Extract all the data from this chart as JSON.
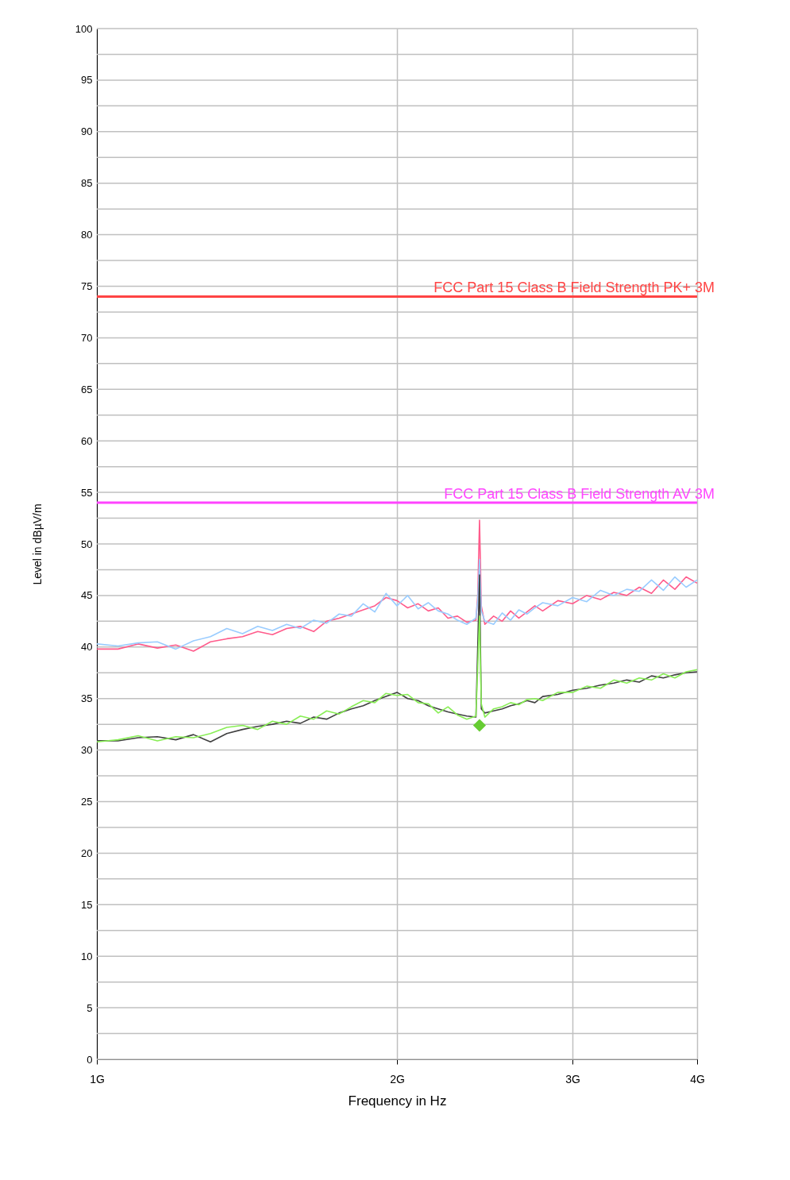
{
  "chart_data": {
    "type": "line",
    "xlabel": "Frequency in Hz",
    "ylabel": "Level in dBµV/m",
    "log": "x",
    "xlim": [
      1,
      4
    ],
    "xticks": [
      {
        "value": 1,
        "label": "1G"
      },
      {
        "value": 2,
        "label": "2G"
      },
      {
        "value": 3,
        "label": "3G"
      },
      {
        "value": 4,
        "label": "4G"
      }
    ],
    "ylim": [
      0,
      100
    ],
    "yticks": [
      0,
      {
        "value": 2.5,
        "label": null
      },
      5,
      {
        "value": 7.5,
        "label": null
      },
      10,
      {
        "value": 12.5,
        "label": null
      },
      15,
      {
        "value": 17.5,
        "label": null
      },
      20,
      {
        "value": 22.5,
        "label": null
      },
      25,
      {
        "value": 27.5,
        "label": null
      },
      30,
      {
        "value": 32.5,
        "label": null
      },
      35,
      {
        "value": 37.5,
        "label": null
      },
      40,
      {
        "value": 42.5,
        "label": null
      },
      45,
      {
        "value": 47.5,
        "label": null
      },
      50,
      {
        "value": 52.5,
        "label": null
      },
      55,
      {
        "value": 57.5,
        "label": null
      },
      60,
      {
        "value": 62.5,
        "label": null
      },
      65,
      {
        "value": 67.5,
        "label": null
      },
      70,
      {
        "value": 72.5,
        "label": null
      },
      75,
      {
        "value": 77.5,
        "label": null
      },
      80,
      {
        "value": 82.5,
        "label": null
      },
      85,
      {
        "value": 87.5,
        "label": null
      },
      90,
      {
        "value": 92.5,
        "label": null
      },
      95,
      {
        "value": 97.5,
        "label": null
      },
      100
    ],
    "grid": true,
    "marker": "none",
    "line_style": "solid",
    "x": [
      1.0,
      1.05,
      1.1,
      1.15,
      1.2,
      1.25,
      1.3,
      1.35,
      1.4,
      1.45,
      1.5,
      1.55,
      1.6,
      1.65,
      1.7,
      1.75,
      1.8,
      1.85,
      1.9,
      1.95,
      2.0,
      2.05,
      2.1,
      2.15,
      2.2,
      2.25,
      2.3,
      2.35,
      2.4,
      2.41,
      2.42,
      2.43,
      2.45,
      2.5,
      2.55,
      2.6,
      2.65,
      2.7,
      2.75,
      2.8,
      2.9,
      3.0,
      3.1,
      3.2,
      3.3,
      3.4,
      3.5,
      3.6,
      3.7,
      3.8,
      3.9,
      4.0
    ],
    "series": [
      {
        "color": "#ff5b8b",
        "values": [
          39.8,
          39.8,
          40.3,
          39.9,
          40.2,
          39.6,
          40.5,
          40.8,
          41,
          41.5,
          41.2,
          41.8,
          42,
          41.5,
          42.5,
          42.8,
          43.2,
          43.6,
          44,
          44.8,
          44.5,
          43.8,
          44.2,
          43.5,
          43.8,
          42.8,
          43,
          42.4,
          42.6,
          45,
          52.3,
          44,
          42.2,
          43,
          42.5,
          43.5,
          42.8,
          43.4,
          44,
          43.5,
          44.5,
          44.2,
          45,
          44.6,
          45.3,
          45,
          45.8,
          45.2,
          46.5,
          45.6,
          46.8,
          46.2
        ]
      },
      {
        "color": "#99ccff",
        "values": [
          40.3,
          40.1,
          40.4,
          40.5,
          39.8,
          40.6,
          41,
          41.8,
          41.3,
          42,
          41.6,
          42.2,
          41.8,
          42.6,
          42.3,
          43.2,
          43,
          44.2,
          43.4,
          45.2,
          44,
          45,
          43.7,
          44.3,
          43.5,
          43.2,
          42.6,
          42.2,
          42.8,
          44.5,
          48.5,
          43.5,
          42.5,
          42.2,
          43.3,
          42.6,
          43.6,
          43.2,
          43.8,
          44.3,
          44,
          44.8,
          44.4,
          45.5,
          45,
          45.6,
          45.4,
          46.5,
          45.5,
          46.8,
          45.8,
          46.5
        ]
      },
      {
        "color": "#404040",
        "values": [
          30.9,
          30.9,
          31.2,
          31.3,
          31,
          31.5,
          30.8,
          31.6,
          32,
          32.3,
          32.5,
          32.8,
          32.6,
          33.2,
          33,
          33.6,
          34,
          34.3,
          34.8,
          35.2,
          35.6,
          35,
          34.8,
          34.3,
          34,
          33.7,
          33.5,
          33.3,
          33.2,
          40,
          47,
          34,
          33.6,
          33.8,
          34,
          34.3,
          34.5,
          34.8,
          34.6,
          35.2,
          35.4,
          35.8,
          36,
          36.3,
          36.5,
          36.8,
          36.6,
          37.2,
          37,
          37.3,
          37.5,
          37.6
        ]
      },
      {
        "color": "#88ee55",
        "values": [
          30.8,
          31,
          31.4,
          30.9,
          31.3,
          31.2,
          31.6,
          32.2,
          32.4,
          32,
          32.8,
          32.5,
          33.3,
          33,
          33.8,
          33.5,
          34.2,
          34.8,
          34.6,
          35.5,
          35.3,
          35.4,
          34.6,
          34.5,
          33.6,
          34.2,
          33.4,
          33,
          33.3,
          38,
          43,
          34.5,
          33.2,
          34,
          34.2,
          34.6,
          34.4,
          34.9,
          35,
          34.8,
          35.6,
          35.6,
          36.2,
          36,
          36.8,
          36.5,
          37,
          36.8,
          37.4,
          37,
          37.6,
          37.8
        ]
      },
      {
        "type": "scatter",
        "marker": "diamond",
        "color": "#66cc33",
        "x": [
          2.42
        ],
        "values": [
          32.4
        ]
      }
    ],
    "ref_lines": [
      {
        "axis": "y",
        "value": 74,
        "label": "FCC Part 15 Class B Field Strength PK+ 3M",
        "color": "#ff4444"
      },
      {
        "axis": "y",
        "value": 54,
        "label": "FCC Part 15 Class B Field Strength AV 3M",
        "color": "#ff44ff"
      }
    ]
  }
}
